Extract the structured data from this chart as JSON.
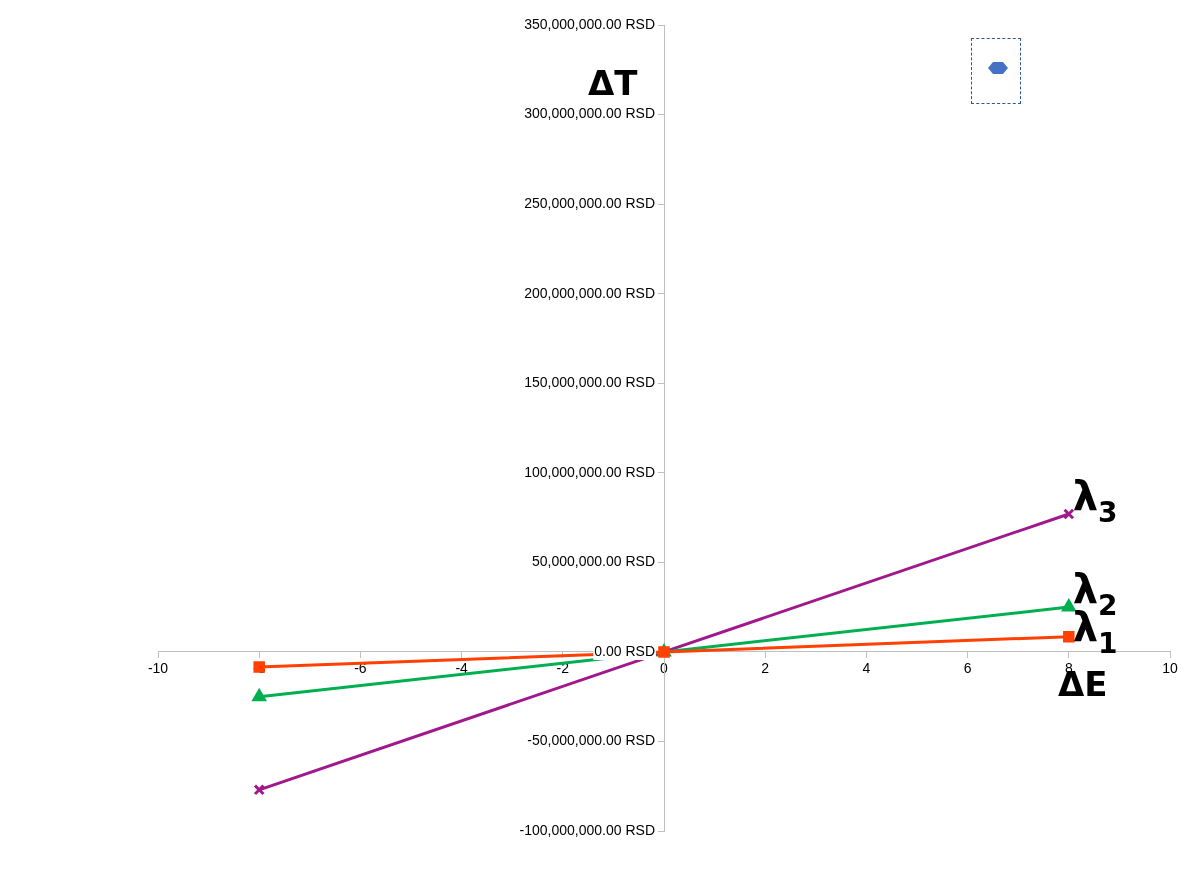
{
  "chart_data": {
    "type": "line",
    "xlabel": "ΔE",
    "ylabel": "ΔT",
    "x": [
      -8,
      0,
      8
    ],
    "series": [
      {
        "name": "λ$_{1}$",
        "color": "#ff4000",
        "marker": "square",
        "values": [
          -8500000,
          0,
          8500000
        ]
      },
      {
        "name": "λ$_{2}$",
        "color": "#00b050",
        "marker": "triangle",
        "values": [
          -25000000,
          0,
          25000000
        ]
      },
      {
        "name": "λ$_{3}$",
        "color": "#a0188c",
        "marker": "cross",
        "values": [
          -77000000,
          0,
          77000000
        ]
      }
    ],
    "xlim": [
      -10,
      10
    ],
    "xticks": [
      -10,
      -8,
      -6,
      -4,
      -2,
      0,
      2,
      4,
      6,
      8,
      10
    ],
    "ylim": [
      -100000000,
      350000000
    ],
    "yticks": [
      {
        "value": -100000000,
        "label": "-100,000,000.00 RSD"
      },
      {
        "value": -50000000,
        "label": "-50,000,000.00 RSD"
      },
      {
        "value": 0,
        "label": "0.00 RSD"
      },
      {
        "value": 50000000,
        "label": "50,000,000.00 RSD"
      },
      {
        "value": 100000000,
        "label": "100,000,000.00 RSD"
      },
      {
        "value": 150000000,
        "label": "150,000,000.00 RSD"
      },
      {
        "value": 200000000,
        "label": "200,000,000.00 RSD"
      },
      {
        "value": 250000000,
        "label": "250,000,000.00 RSD"
      },
      {
        "value": 300000000,
        "label": "300,000,000.00 RSD"
      },
      {
        "value": 350000000,
        "label": "350,000,000.00 RSD"
      }
    ],
    "grid": false,
    "legend": false,
    "line_style": "solid"
  }
}
